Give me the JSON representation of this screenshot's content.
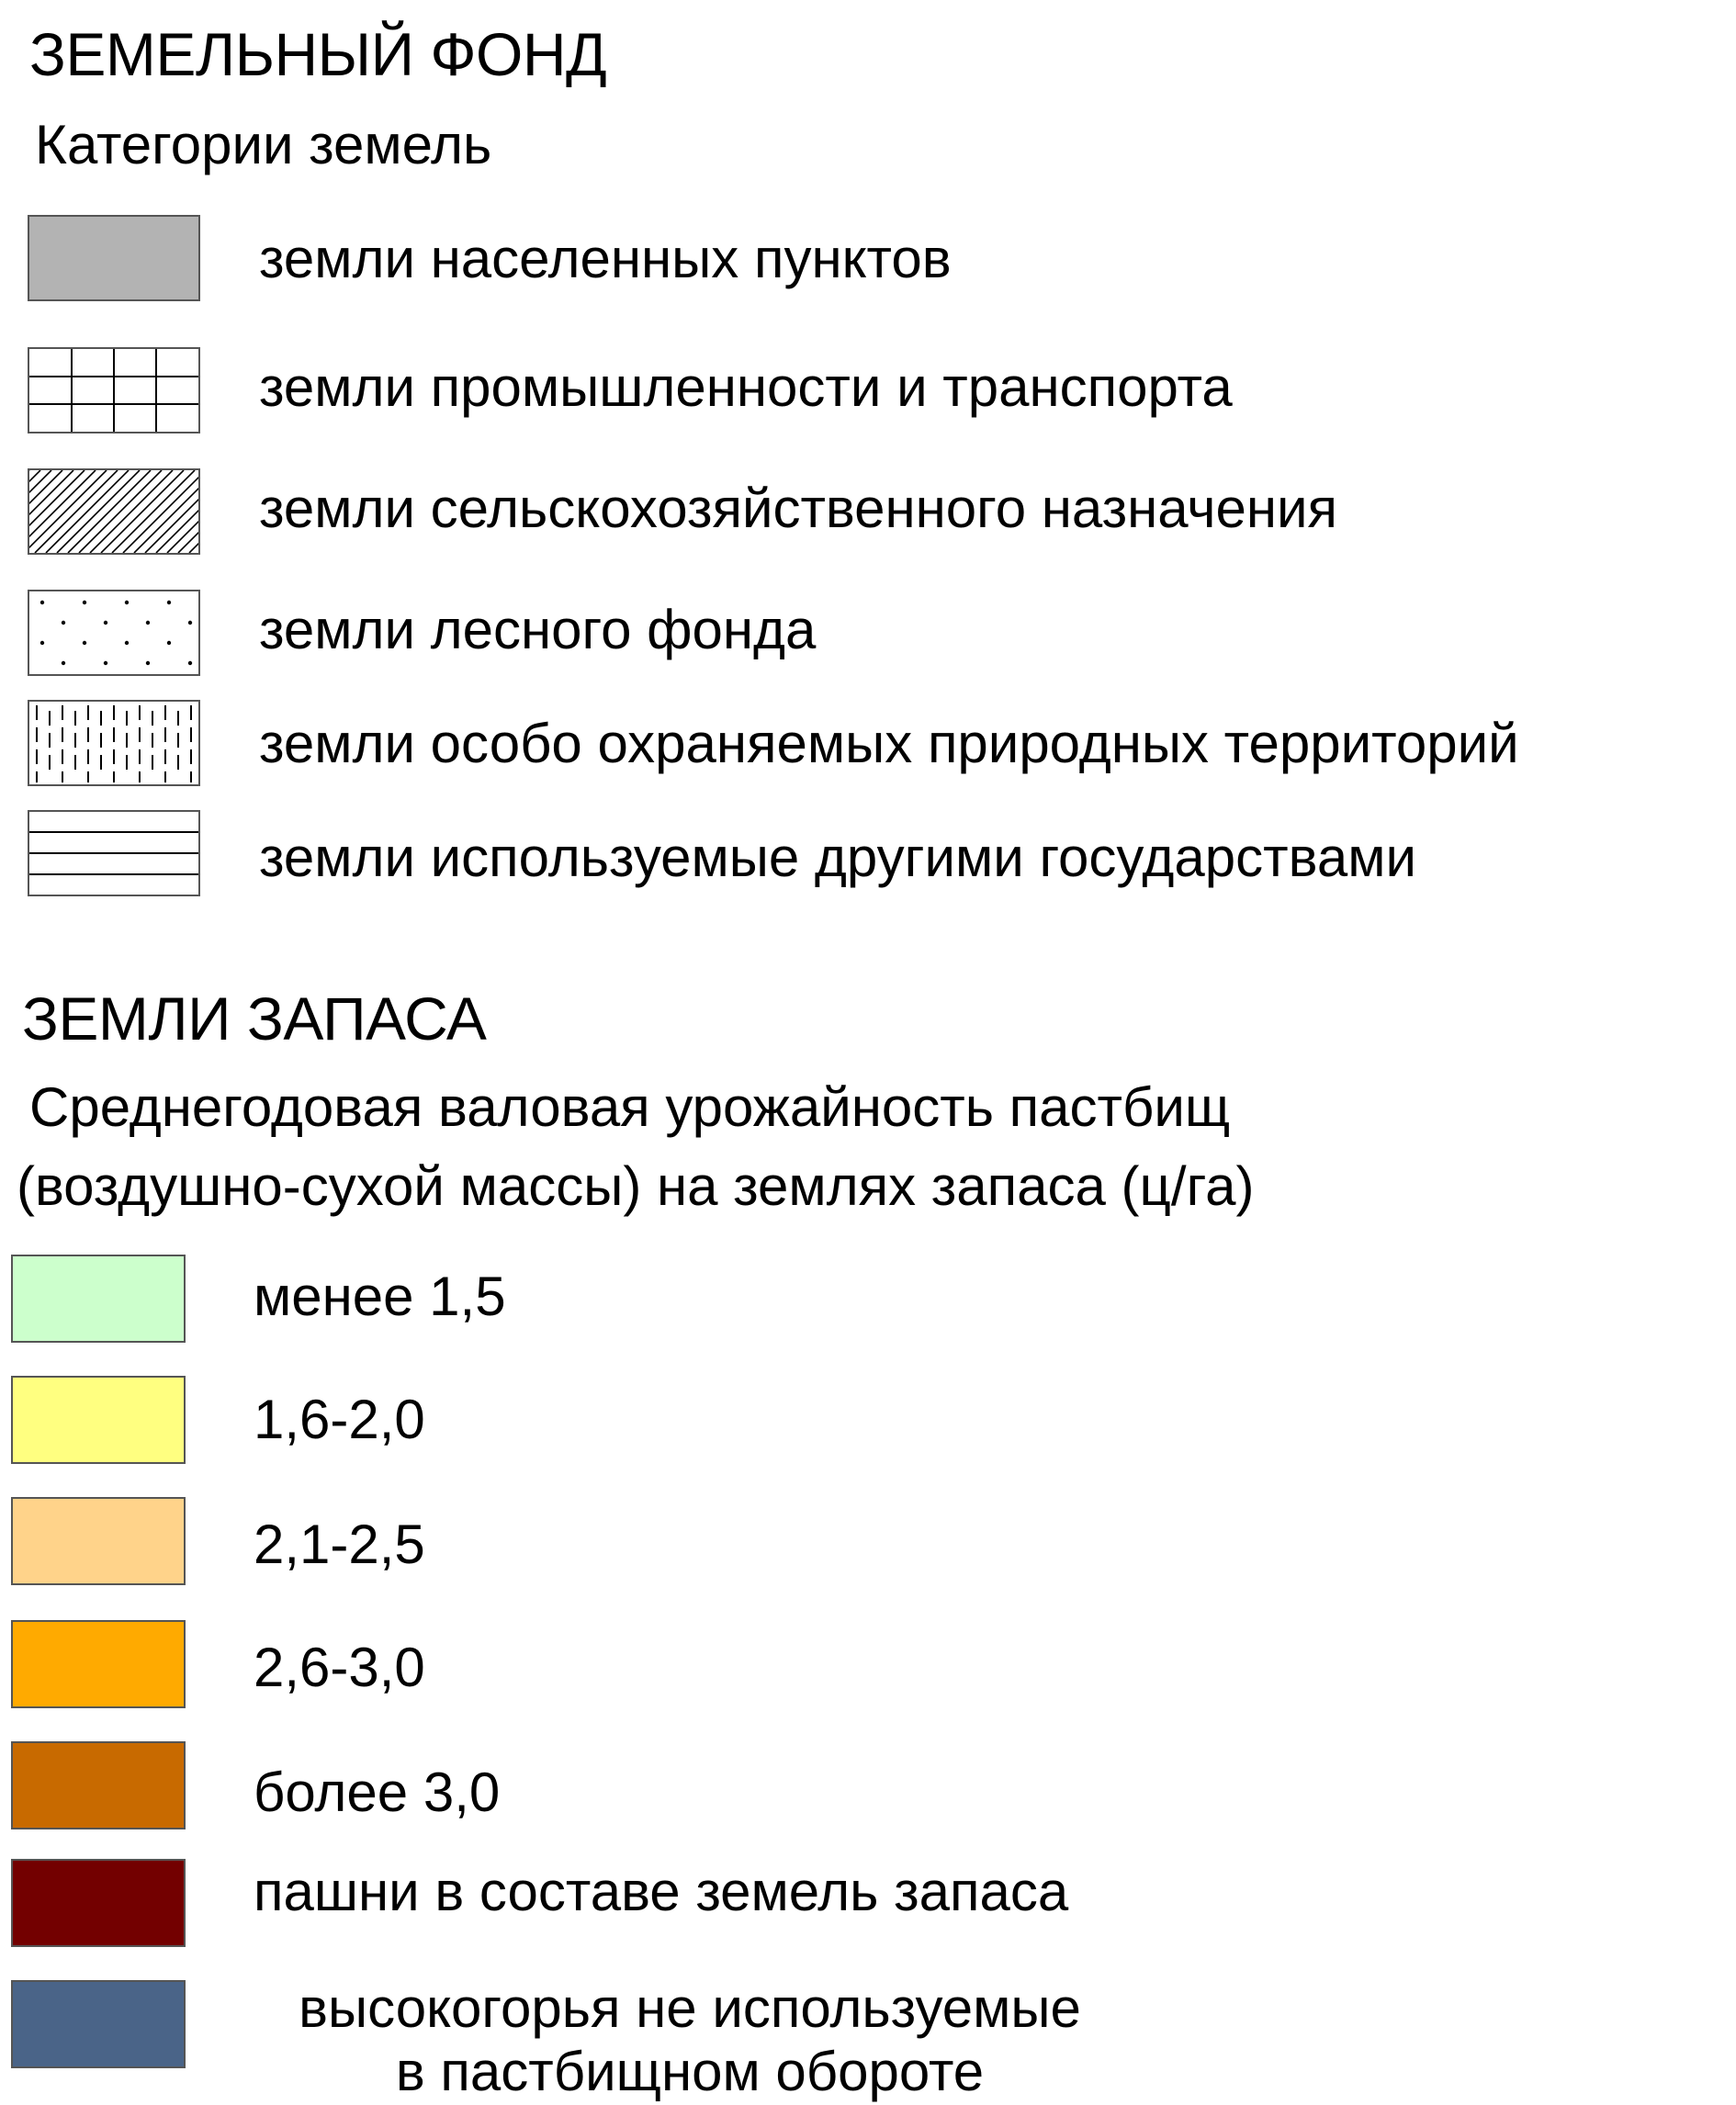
{
  "land_fund": {
    "heading": "ЗЕМЕЛЬНЫЙ ФОНД",
    "subheading": "Категории земель",
    "items": [
      {
        "label": "земли населенных пунктов",
        "pattern": "solid-gray",
        "color": "#b3b3b3"
      },
      {
        "label": "земли промышленности и транспорта",
        "pattern": "grid"
      },
      {
        "label": "земли сельскохозяйственного назначения",
        "pattern": "diagonal-hatch"
      },
      {
        "label": "земли лесного фонда",
        "pattern": "dots"
      },
      {
        "label": "земли особо охраняемых природных территорий",
        "pattern": "vertical-dashes"
      },
      {
        "label": "земли используемые другими государствами",
        "pattern": "horizontal-lines"
      }
    ]
  },
  "reserve_lands": {
    "heading": "ЗЕМЛИ ЗАПАСА",
    "subheading_line1": "Среднегодовая валовая урожайность пастбищ",
    "subheading_line2": "(воздушно-сухой массы) на землях запаса (ц/га)",
    "items": [
      {
        "label": "менее 1,5",
        "color": "#ccffcc"
      },
      {
        "label": "1,6-2,0",
        "color": "#ffff80"
      },
      {
        "label": "2,1-2,5",
        "color": "#ffd38a"
      },
      {
        "label": "2,6-3,0",
        "color": "#ffaa00"
      },
      {
        "label": "более 3,0",
        "color": "#c86a00"
      },
      {
        "label": "пашни в составе земель запаса",
        "color": "#730000"
      },
      {
        "label_line1": "высокогорья не используемые",
        "label_line2": "в пастбищном обороте",
        "color": "#4a6488"
      }
    ]
  }
}
